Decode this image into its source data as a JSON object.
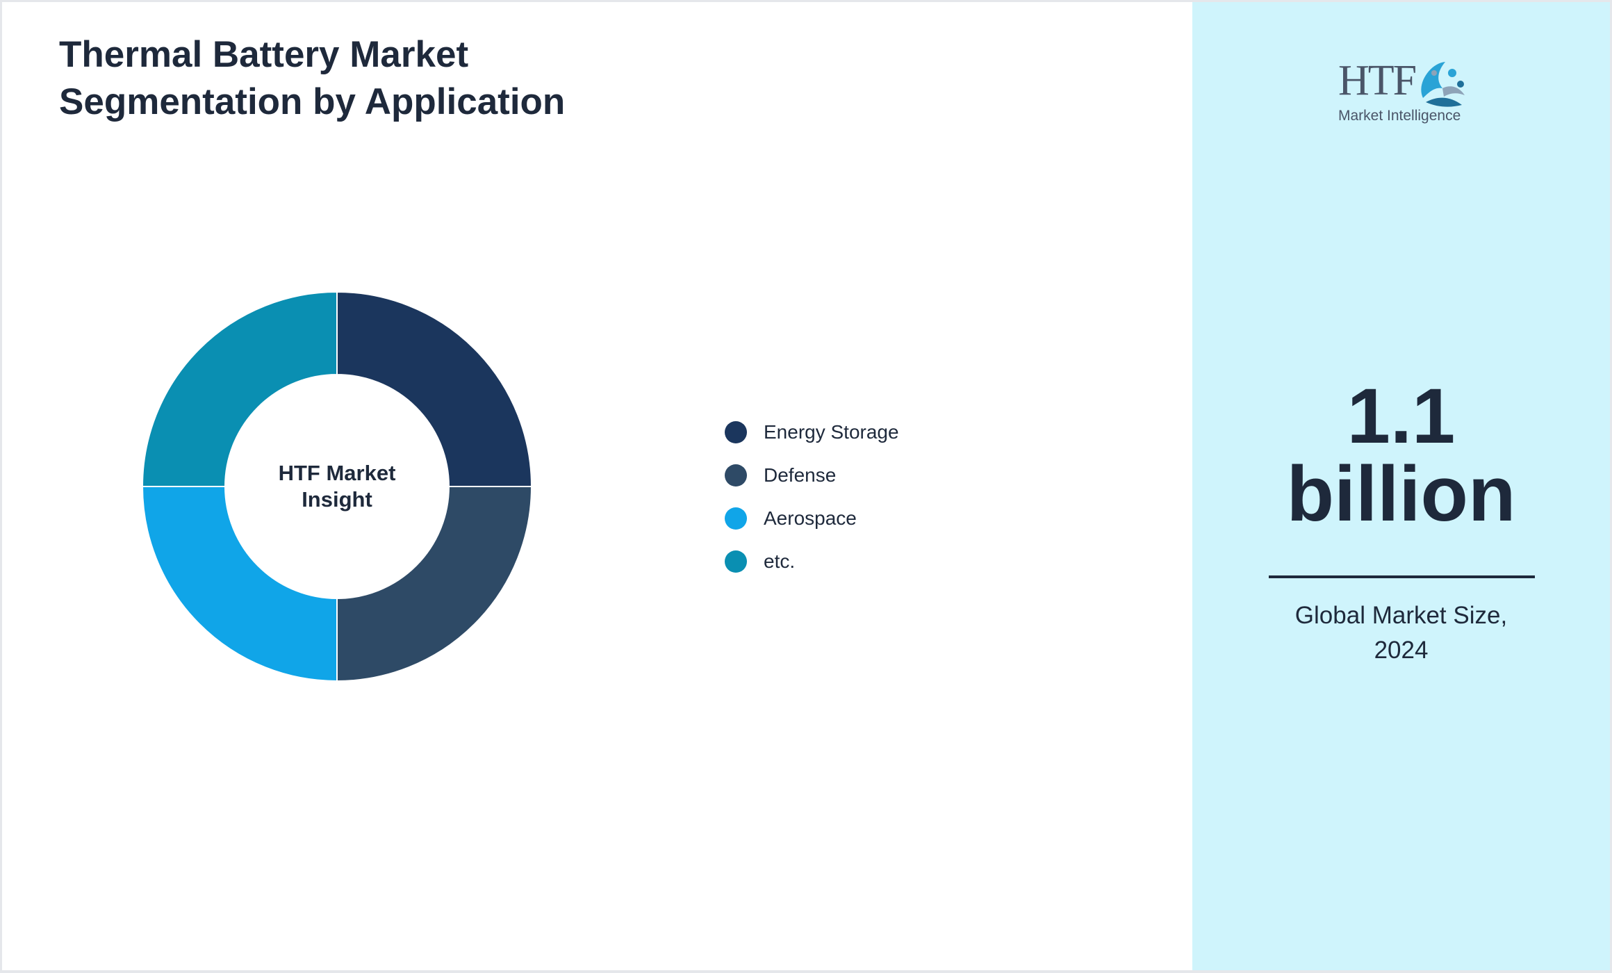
{
  "title_lines": [
    "Thermal Battery Market",
    "Segmentation by Application"
  ],
  "chart_data": {
    "type": "pie",
    "variant": "donut",
    "center_label_lines": [
      "HTF Market",
      "Insight"
    ],
    "categories": [
      "Energy Storage",
      "Defense",
      "Aerospace",
      "etc."
    ],
    "values": [
      25,
      25,
      25,
      25
    ],
    "colors": [
      "#1b365d",
      "#2e4a66",
      "#10a5e8",
      "#0a8fb2"
    ],
    "legend_position": "right"
  },
  "logo": {
    "text": "HTF",
    "subtitle": "Market Intelligence"
  },
  "stat": {
    "value_lines": [
      "1.1",
      "billion"
    ],
    "caption_lines": [
      "Global Market Size,",
      "2024"
    ]
  },
  "colors": {
    "side_panel": "#cff4fc",
    "text": "#1e293b"
  }
}
